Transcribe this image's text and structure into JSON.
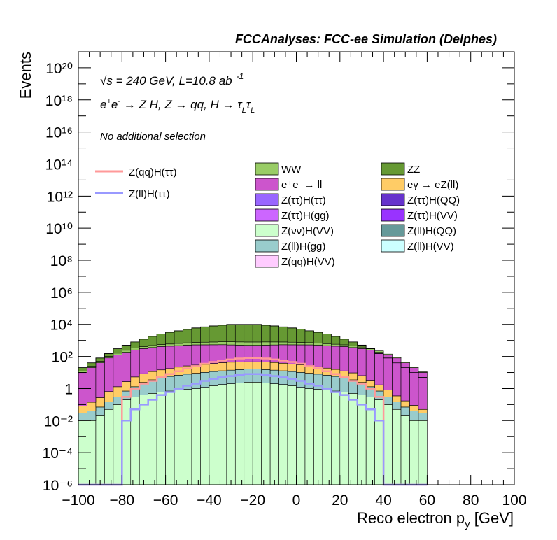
{
  "header": {
    "title": "FCCAnalyses: FCC-ee Simulation (Delphes)",
    "energy_line": "√s = 240 GeV, L=10.8 ab⁻¹",
    "energy_sqrt": "√",
    "energy_s": "s",
    "energy_rest": " = 240 GeV, L=10.8 ab",
    "energy_sup": "-1",
    "process_line": "e⁺e⁻ → Z H, Z → qq, H → τLτL",
    "selection": "No additional selection"
  },
  "chart_data": {
    "type": "stacked histogram",
    "xlabel": "Reco electron p_y [GeV]",
    "ylabel": "Events",
    "xlim": [
      -100,
      100
    ],
    "ylim": [
      1e-06,
      1e+21
    ],
    "yscale": "log",
    "grid": false,
    "x_ticks": [
      "−100",
      "−80",
      "−60",
      "−40",
      "−20",
      "0",
      "20",
      "40",
      "60",
      "80",
      "100"
    ],
    "y_ticks": [
      "10⁻⁶",
      "10⁻⁴",
      "10⁻²",
      "1",
      "10²",
      "10⁴",
      "10⁶",
      "10⁸",
      "10¹⁰",
      "10¹²",
      "10¹⁴",
      "10¹⁶",
      "10¹⁸",
      "10²⁰"
    ],
    "bin_width": 4,
    "stack_outline_top": [
      20,
      40,
      80,
      150,
      300,
      500,
      800,
      1200,
      1800,
      2500,
      3200,
      4000,
      5000,
      6000,
      7000,
      8000,
      9000,
      10000,
      10000,
      10000,
      10000,
      9000,
      8000,
      7000,
      6000,
      5000,
      4000,
      3200,
      2500,
      1800,
      1200,
      800,
      500,
      300,
      150,
      80,
      40,
      20,
      10,
      5
    ],
    "stack_layers": [
      {
        "name": "Z(qq)H(VV)",
        "color": "#cc55ee",
        "values": [
          0,
          0,
          0,
          0,
          0,
          0,
          0,
          0,
          0,
          0,
          0,
          0,
          0,
          0,
          0,
          0,
          0,
          0,
          0,
          0,
          0,
          0,
          0,
          0,
          0,
          0,
          0,
          0,
          0,
          0,
          0,
          0,
          0,
          0,
          0,
          0,
          0,
          0,
          0,
          0
        ]
      },
      {
        "name": "Z(vv)H(VV)",
        "color": "#ccffcc",
        "values": [
          0.01,
          0.01,
          0.02,
          0.05,
          0.1,
          0.2,
          0.3,
          0.4,
          0.5,
          0.6,
          0.7,
          0.8,
          0.9,
          1,
          1.2,
          1.5,
          1.8,
          2,
          2.2,
          2.5,
          2.5,
          2.2,
          2,
          1.8,
          1.5,
          1.2,
          1,
          0.9,
          0.8,
          0.7,
          0.6,
          0.5,
          0.4,
          0.3,
          0.2,
          0.1,
          0.05,
          0.02,
          0.01,
          0.01
        ]
      },
      {
        "name": "Z(ll)H(gg)",
        "color": "#99cccc",
        "values": [
          0.02,
          0.03,
          0.05,
          0.1,
          0.2,
          0.5,
          1,
          2,
          3,
          4,
          5,
          6,
          7,
          8,
          9,
          10,
          11,
          12,
          13,
          14,
          14,
          13,
          12,
          11,
          10,
          9,
          8,
          7,
          6,
          5,
          4,
          3,
          2,
          1,
          0.5,
          0.2,
          0.1,
          0.05,
          0.03,
          0.02
        ]
      },
      {
        "name": "eγ → eZ(ll)",
        "color": "#ffcc66",
        "values": [
          0.05,
          0.1,
          0.2,
          0.5,
          1,
          2,
          4,
          6,
          8,
          10,
          12,
          15,
          18,
          20,
          22,
          25,
          28,
          30,
          30,
          30,
          30,
          30,
          28,
          25,
          22,
          20,
          18,
          15,
          12,
          10,
          8,
          6,
          4,
          2,
          1,
          0.5,
          0.2,
          0.1,
          0.05,
          0.02
        ]
      },
      {
        "name": "e⁺e⁻→ ll",
        "color": "#cc55cc",
        "values": [
          10,
          20,
          40,
          80,
          120,
          180,
          250,
          300,
          350,
          400,
          420,
          450,
          480,
          500,
          500,
          500,
          500,
          480,
          460,
          450,
          450,
          460,
          480,
          500,
          500,
          500,
          500,
          480,
          450,
          420,
          400,
          350,
          300,
          250,
          180,
          120,
          80,
          40,
          20,
          10
        ]
      },
      {
        "name": "WW",
        "color": "#99cc66",
        "values": [
          2,
          5,
          10,
          20,
          40,
          60,
          80,
          100,
          120,
          140,
          160,
          180,
          200,
          220,
          240,
          260,
          280,
          300,
          300,
          300,
          300,
          300,
          280,
          260,
          240,
          220,
          200,
          180,
          160,
          140,
          120,
          100,
          80,
          60,
          40,
          20,
          10,
          5,
          2,
          1
        ]
      },
      {
        "name": "ZZ",
        "color": "#669933",
        "values": [
          8,
          15,
          30,
          50,
          140,
          260,
          470,
          790,
          1320,
          1950,
          2600,
          3300,
          4100,
          5200,
          6200,
          7200,
          8100,
          9000,
          9000,
          9000,
          9000,
          8000,
          7200,
          6200,
          5200,
          4300,
          3300,
          2500,
          1900,
          1200,
          680,
          350,
          130,
          0,
          0,
          0,
          0,
          0,
          0,
          0
        ]
      }
    ],
    "overlay_series": [
      {
        "name": "Z(qq)H(ττ)",
        "color": "#ff9999",
        "values": [
          0,
          0,
          0,
          0,
          0,
          0.3,
          1,
          2,
          3,
          5,
          8,
          12,
          18,
          25,
          35,
          45,
          55,
          65,
          75,
          80,
          80,
          75,
          65,
          55,
          45,
          35,
          25,
          18,
          12,
          8,
          5,
          3,
          2,
          1,
          0.3,
          0,
          0,
          0,
          0,
          0
        ]
      },
      {
        "name": "Z(ll)H(ττ)",
        "color": "#9999ff",
        "values": [
          0,
          0,
          0,
          0,
          0,
          0.01,
          0.05,
          0.1,
          0.2,
          0.4,
          0.6,
          1,
          1.5,
          2,
          3,
          4,
          5,
          6,
          7,
          8,
          8,
          7,
          6,
          5,
          4,
          3,
          2,
          1.5,
          1,
          0.6,
          0.4,
          0.2,
          0.1,
          0.05,
          0.01,
          0,
          0,
          0,
          0,
          0
        ]
      }
    ],
    "legend_entries": [
      {
        "name": "WW",
        "color": "#99cc66"
      },
      {
        "name": "ZZ",
        "color": "#669933"
      },
      {
        "name": "e⁺e⁻→ ll",
        "color": "#cc55cc"
      },
      {
        "name": "eγ → eZ(ll)",
        "color": "#ffcc66"
      },
      {
        "name": "Z(ττ)H(ττ)",
        "color": "#9966ff"
      },
      {
        "name": "Z(ττ)H(QQ)",
        "color": "#6633cc"
      },
      {
        "name": "Z(ττ)H(gg)",
        "color": "#cc66ff"
      },
      {
        "name": "Z(ττ)H(VV)",
        "color": "#9933ff"
      },
      {
        "name": "Z(νν)H(VV)",
        "color": "#ccffcc"
      },
      {
        "name": "Z(ll)H(QQ)",
        "color": "#669999"
      },
      {
        "name": "Z(ll)H(gg)",
        "color": "#99cccc"
      },
      {
        "name": "Z(ll)H(VV)",
        "color": "#ccffff"
      },
      {
        "name": "Z(qq)H(VV)",
        "color": "#ffccff"
      }
    ],
    "line_legend": [
      {
        "name": "Z(qq)H(ττ)",
        "color": "#ff9999"
      },
      {
        "name": "Z(ll)H(ττ)",
        "color": "#9999ff"
      }
    ]
  }
}
